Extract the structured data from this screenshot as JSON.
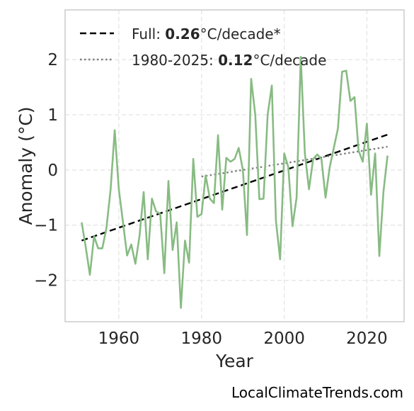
{
  "chart_data": {
    "type": "line",
    "xlabel": "Year",
    "ylabel": "Anomaly (°C)",
    "xlim": [
      1947,
      2029
    ],
    "ylim": [
      -2.75,
      2.9
    ],
    "xticks": [
      1960,
      1980,
      2000,
      2020
    ],
    "yticks": [
      -2,
      -1,
      0,
      1,
      2
    ],
    "ytick_labels": [
      "−2",
      "−1",
      "0",
      "1",
      "2"
    ],
    "grid": true,
    "legend_position": "top-left",
    "series": [
      {
        "kind": "data",
        "color": "#88bb83",
        "x": [
          1951,
          1952,
          1953,
          1954,
          1955,
          1956,
          1957,
          1958,
          1959,
          1960,
          1961,
          1962,
          1963,
          1964,
          1965,
          1966,
          1967,
          1968,
          1969,
          1970,
          1971,
          1972,
          1973,
          1974,
          1975,
          1976,
          1977,
          1978,
          1979,
          1980,
          1981,
          1982,
          1983,
          1984,
          1985,
          1986,
          1987,
          1988,
          1989,
          1990,
          1991,
          1992,
          1993,
          1994,
          1995,
          1996,
          1997,
          1998,
          1999,
          2000,
          2001,
          2002,
          2003,
          2004,
          2005,
          2006,
          2007,
          2008,
          2009,
          2010,
          2011,
          2012,
          2013,
          2014,
          2015,
          2016,
          2017,
          2018,
          2019,
          2020,
          2021,
          2022,
          2023,
          2024,
          2025
        ],
        "y": [
          -0.95,
          -1.4,
          -1.9,
          -1.2,
          -1.42,
          -1.42,
          -1.05,
          -0.35,
          0.72,
          -0.35,
          -0.95,
          -1.55,
          -1.35,
          -1.7,
          -1.2,
          -0.4,
          -1.62,
          -0.52,
          -0.75,
          -0.8,
          -1.87,
          -0.2,
          -1.45,
          -0.95,
          -2.5,
          -1.28,
          -1.68,
          0.2,
          -0.85,
          -0.8,
          -0.1,
          -0.52,
          -0.6,
          0.63,
          -0.72,
          0.22,
          0.15,
          0.2,
          0.4,
          0.0,
          -1.18,
          1.65,
          1.0,
          -0.53,
          -0.52,
          1.0,
          1.53,
          -0.92,
          -1.62,
          0.3,
          0.05,
          -1.02,
          -0.5,
          2.05,
          0.3,
          -0.35,
          0.2,
          0.28,
          0.2,
          -0.5,
          0.05,
          0.4,
          0.75,
          1.78,
          1.8,
          1.25,
          1.32,
          0.35,
          0.15,
          0.84,
          -0.45,
          0.3,
          -1.56,
          -0.4,
          0.26
        ]
      },
      {
        "kind": "trend",
        "name": "Full",
        "color": "#000000",
        "style": "dashed",
        "x": [
          1951,
          2025
        ],
        "y": [
          -1.28,
          0.64
        ]
      },
      {
        "kind": "trend",
        "name": "1980-2025",
        "color": "#7f7f7f",
        "style": "dotted",
        "x": [
          1980,
          2025
        ],
        "y": [
          -0.12,
          0.42
        ]
      }
    ],
    "legend": [
      {
        "prefix": "Full: ",
        "value": "0.26",
        "suffix": "°C/decade*",
        "style": "dashed",
        "color": "#000000"
      },
      {
        "prefix": "1980-2025: ",
        "value": "0.12",
        "suffix": "°C/decade",
        "style": "dotted",
        "color": "#7f7f7f"
      }
    ]
  },
  "watermark": "LocalClimateTrends.com"
}
